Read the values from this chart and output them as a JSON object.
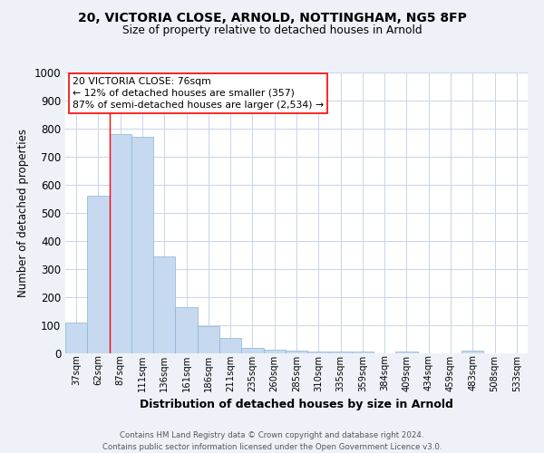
{
  "title_line1": "20, VICTORIA CLOSE, ARNOLD, NOTTINGHAM, NG5 8FP",
  "title_line2": "Size of property relative to detached houses in Arnold",
  "xlabel": "Distribution of detached houses by size in Arnold",
  "ylabel": "Number of detached properties",
  "bar_color": "#c6d9f0",
  "bar_edge_color": "#8ab4d4",
  "categories": [
    "37sqm",
    "62sqm",
    "87sqm",
    "111sqm",
    "136sqm",
    "161sqm",
    "186sqm",
    "211sqm",
    "235sqm",
    "260sqm",
    "285sqm",
    "310sqm",
    "335sqm",
    "359sqm",
    "384sqm",
    "409sqm",
    "434sqm",
    "459sqm",
    "483sqm",
    "508sqm",
    "533sqm"
  ],
  "values": [
    110,
    560,
    780,
    770,
    345,
    163,
    98,
    55,
    20,
    13,
    10,
    8,
    6,
    5,
    0,
    8,
    0,
    0,
    9,
    0,
    0
  ],
  "ylim": [
    0,
    1000
  ],
  "yticks": [
    0,
    100,
    200,
    300,
    400,
    500,
    600,
    700,
    800,
    900,
    1000
  ],
  "annotation_text": "20 VICTORIA CLOSE: 76sqm\n← 12% of detached houses are smaller (357)\n87% of semi-detached houses are larger (2,534) →",
  "vline_x": 1.5,
  "footer_line1": "Contains HM Land Registry data © Crown copyright and database right 2024.",
  "footer_line2": "Contains public sector information licensed under the Open Government Licence v3.0.",
  "background_color": "#eef2f8",
  "plot_bg_color": "#ffffff",
  "grid_color": "#c8d4e8"
}
